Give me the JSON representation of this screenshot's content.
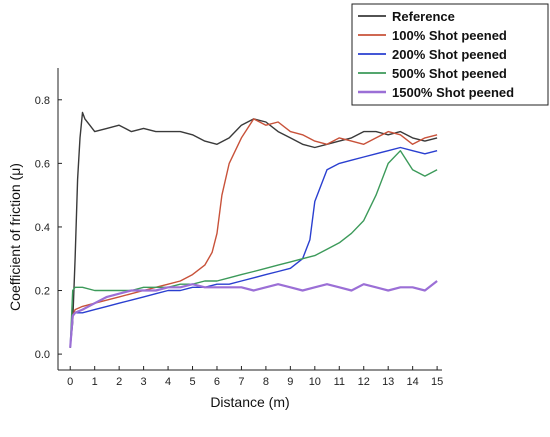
{
  "chart_data": {
    "type": "line",
    "title": "",
    "xlabel": "Distance (m)",
    "ylabel": "Coefficient of friction (μ)",
    "xlim": [
      -0.5,
      15.2
    ],
    "ylim": [
      -0.05,
      0.9
    ],
    "xticks": [
      "0",
      "1",
      "2",
      "3",
      "4",
      "5",
      "6",
      "7",
      "8",
      "9",
      "10",
      "11",
      "12",
      "13",
      "14",
      "15"
    ],
    "yticks": [
      "0.0",
      "0.2",
      "0.4",
      "0.6",
      "0.8"
    ],
    "grid": false,
    "legend_position": "top-right",
    "series": [
      {
        "name": "Reference",
        "color": "#3a3a3a",
        "x": [
          0,
          0.1,
          0.2,
          0.3,
          0.4,
          0.5,
          0.6,
          0.8,
          1,
          1.5,
          2,
          2.5,
          3,
          3.5,
          4,
          4.5,
          5,
          5.5,
          6,
          6.5,
          7,
          7.5,
          8,
          8.5,
          9,
          9.5,
          10,
          10.5,
          11,
          11.5,
          12,
          12.5,
          13,
          13.5,
          14,
          14.5,
          15
        ],
        "y": [
          0.02,
          0.1,
          0.3,
          0.55,
          0.68,
          0.76,
          0.74,
          0.72,
          0.7,
          0.71,
          0.72,
          0.7,
          0.71,
          0.7,
          0.7,
          0.7,
          0.69,
          0.67,
          0.66,
          0.68,
          0.72,
          0.74,
          0.73,
          0.7,
          0.68,
          0.66,
          0.65,
          0.66,
          0.67,
          0.68,
          0.7,
          0.7,
          0.69,
          0.7,
          0.68,
          0.67,
          0.68
        ]
      },
      {
        "name": "100% Shot peened",
        "color": "#c8523a",
        "x": [
          0,
          0.1,
          0.2,
          0.5,
          1,
          1.5,
          2,
          2.5,
          3,
          3.5,
          4,
          4.5,
          5,
          5.5,
          5.8,
          6,
          6.2,
          6.5,
          7,
          7.5,
          8,
          8.5,
          9,
          9.5,
          10,
          10.5,
          11,
          11.5,
          12,
          12.5,
          13,
          13.5,
          14,
          14.5,
          15
        ],
        "y": [
          0.02,
          0.12,
          0.14,
          0.15,
          0.16,
          0.17,
          0.18,
          0.19,
          0.2,
          0.21,
          0.22,
          0.23,
          0.25,
          0.28,
          0.32,
          0.38,
          0.5,
          0.6,
          0.68,
          0.74,
          0.72,
          0.73,
          0.7,
          0.69,
          0.67,
          0.66,
          0.68,
          0.67,
          0.66,
          0.68,
          0.7,
          0.69,
          0.66,
          0.68,
          0.69
        ]
      },
      {
        "name": "200% Shot peened",
        "color": "#2a3fd0",
        "x": [
          0,
          0.1,
          0.2,
          0.5,
          1,
          1.5,
          2,
          2.5,
          3,
          3.5,
          4,
          4.5,
          5,
          5.5,
          6,
          6.5,
          7,
          7.5,
          8,
          8.5,
          9,
          9.5,
          9.8,
          10,
          10.5,
          11,
          11.5,
          12,
          12.5,
          13,
          13.5,
          14,
          14.5,
          15
        ],
        "y": [
          0.02,
          0.12,
          0.13,
          0.13,
          0.14,
          0.15,
          0.16,
          0.17,
          0.18,
          0.19,
          0.2,
          0.2,
          0.21,
          0.21,
          0.22,
          0.22,
          0.23,
          0.24,
          0.25,
          0.26,
          0.27,
          0.3,
          0.36,
          0.48,
          0.58,
          0.6,
          0.61,
          0.62,
          0.63,
          0.64,
          0.65,
          0.64,
          0.63,
          0.64
        ]
      },
      {
        "name": "500% Shot peened",
        "color": "#3c9a5a",
        "x": [
          0,
          0.1,
          0.2,
          0.5,
          1,
          1.5,
          2,
          2.5,
          3,
          3.5,
          4,
          4.5,
          5,
          5.5,
          6,
          6.5,
          7,
          7.5,
          8,
          8.5,
          9,
          9.5,
          10,
          10.5,
          11,
          11.5,
          12,
          12.5,
          13,
          13.5,
          14,
          14.5,
          15
        ],
        "y": [
          0.02,
          0.2,
          0.21,
          0.21,
          0.2,
          0.2,
          0.2,
          0.2,
          0.21,
          0.21,
          0.21,
          0.22,
          0.22,
          0.23,
          0.23,
          0.24,
          0.25,
          0.26,
          0.27,
          0.28,
          0.29,
          0.3,
          0.31,
          0.33,
          0.35,
          0.38,
          0.42,
          0.5,
          0.6,
          0.64,
          0.58,
          0.56,
          0.58
        ]
      },
      {
        "name": "1500% Shot peened",
        "color": "#9b6fd6",
        "x": [
          0,
          0.1,
          0.2,
          0.5,
          1,
          1.5,
          2,
          2.5,
          3,
          3.5,
          4,
          4.5,
          5,
          5.5,
          6,
          6.5,
          7,
          7.5,
          8,
          8.5,
          9,
          9.5,
          10,
          10.5,
          11,
          11.5,
          12,
          12.5,
          13,
          13.5,
          14,
          14.5,
          15
        ],
        "y": [
          0.02,
          0.12,
          0.13,
          0.14,
          0.16,
          0.18,
          0.19,
          0.2,
          0.2,
          0.2,
          0.21,
          0.21,
          0.22,
          0.21,
          0.21,
          0.21,
          0.21,
          0.2,
          0.21,
          0.22,
          0.21,
          0.2,
          0.21,
          0.22,
          0.21,
          0.2,
          0.22,
          0.21,
          0.2,
          0.21,
          0.21,
          0.2,
          0.23
        ]
      }
    ]
  }
}
